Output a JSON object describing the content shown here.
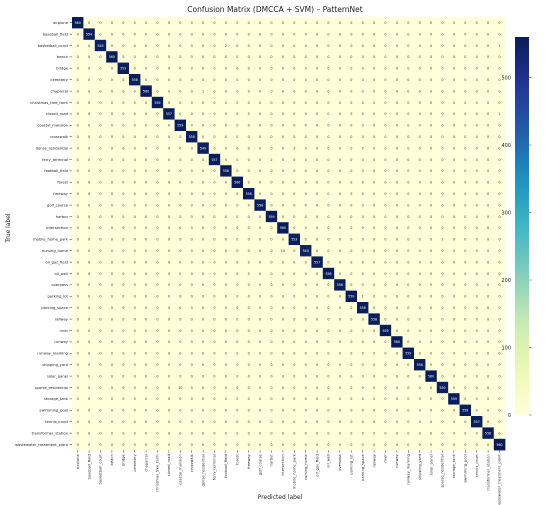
{
  "chart_data": {
    "type": "heatmap",
    "title": "Confusion Matrix (DMCCA + SVM) – PatternNet",
    "xlabel": "Predicted label",
    "ylabel": "True label",
    "labels": [
      "airplane",
      "baseball_field",
      "basketball_court",
      "beach",
      "bridge",
      "cemetery",
      "chaparral",
      "christmas_tree_farm",
      "closed_road",
      "coastal_mansion",
      "crosswalk",
      "dense_residential",
      "ferry_terminal",
      "football_field",
      "forest",
      "freeway",
      "golf_course",
      "harbor",
      "intersection",
      "mobile_home_park",
      "nursing_home",
      "oil_gas_field",
      "oil_well",
      "overpass",
      "parking_lot",
      "parking_space",
      "railway",
      "river",
      "runway",
      "runway_marking",
      "shipping_yard",
      "solar_panel",
      "sparse_residential",
      "storage_tank",
      "swimming_pool",
      "tennis_court",
      "transformer_station",
      "wastewater_treatment_plant"
    ],
    "diagonal": [
      560,
      554,
      549,
      560,
      553,
      558,
      560,
      559,
      557,
      559,
      558,
      549,
      557,
      558,
      560,
      556,
      558,
      559,
      560,
      553,
      544,
      557,
      556,
      558,
      559,
      556,
      558,
      559,
      560,
      559,
      558,
      560,
      550,
      559,
      558,
      557,
      558,
      560
    ],
    "off_diagonal_nonzero": [
      {
        "true": "basketball_court",
        "pred": "football_field",
        "value": 2
      },
      {
        "true": "basketball_court",
        "pred": "wastewater_treatment_plant",
        "value": 1
      },
      {
        "true": "chaparral",
        "pred": "dense_residential",
        "value": 1
      },
      {
        "true": "closed_road",
        "pred": "wastewater_treatment_plant",
        "value": 1
      },
      {
        "true": "dense_residential",
        "pred": "mobile_home_park",
        "value": 3
      },
      {
        "true": "dense_residential",
        "pred": "parking_space",
        "value": 2
      },
      {
        "true": "ferry_terminal",
        "pred": "harbor",
        "value": 2
      },
      {
        "true": "mobile_home_park",
        "pred": "sparse_residential",
        "value": 1
      },
      {
        "true": "nursing_home",
        "pred": "intersection",
        "value": 10
      },
      {
        "true": "parking_lot",
        "pred": "parking_space",
        "value": 1
      },
      {
        "true": "sparse_residential",
        "pred": "coastal_mansion",
        "value": 10
      }
    ],
    "colorbar": {
      "min": 0,
      "max": 560,
      "ticks": [
        0,
        100,
        200,
        300,
        400,
        500
      ]
    },
    "colors": {
      "low": "#ffffd9",
      "mid1": "#edf8b1",
      "mid2": "#7fcdbb",
      "mid3": "#1d91c0",
      "high": "#081d58"
    }
  }
}
